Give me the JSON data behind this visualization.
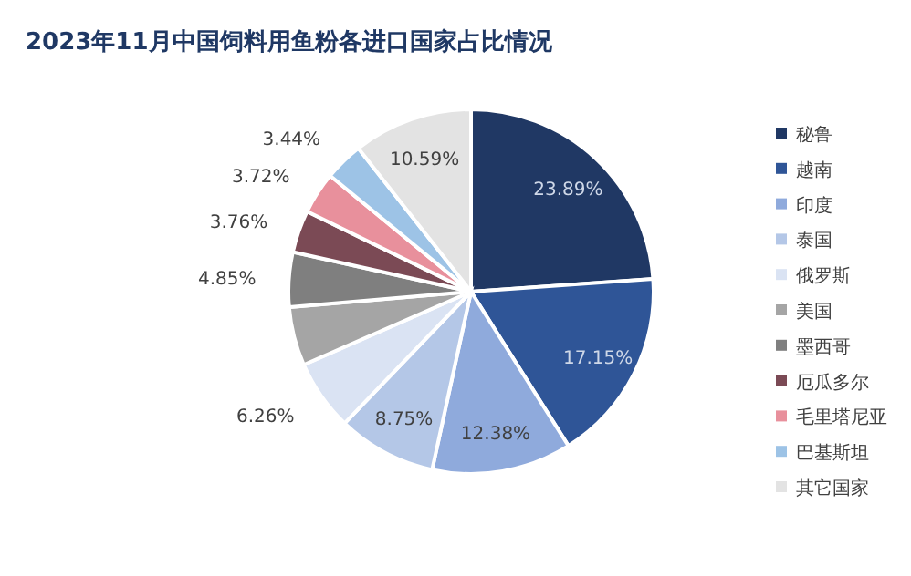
{
  "chart_data": {
    "type": "pie",
    "title": "2023年11月中国饲料用鱼粉各进口国家占比情况",
    "categories": [
      "秘鲁",
      "越南",
      "印度",
      "泰国",
      "俄罗斯",
      "美国",
      "墨西哥",
      "厄瓜多尔",
      "毛里塔尼亚",
      "巴基斯坦",
      "其它国家"
    ],
    "values": [
      23.89,
      17.15,
      12.38,
      8.75,
      6.26,
      5.21,
      4.85,
      3.76,
      3.72,
      3.44,
      10.59
    ],
    "value_labels": [
      "23.89%",
      "17.15%",
      "12.38%",
      "8.75%",
      "6.26%",
      null,
      "4.85%",
      "3.76%",
      "3.72%",
      "3.44%",
      "10.59%"
    ],
    "colors": [
      "#203864",
      "#2f5597",
      "#8faadc",
      "#b4c7e7",
      "#dae3f3",
      "#a5a5a5",
      "#7f7f7f",
      "#7b4a55",
      "#e8909c",
      "#9dc3e6",
      "#e3e3e3"
    ],
    "legend": "right"
  }
}
